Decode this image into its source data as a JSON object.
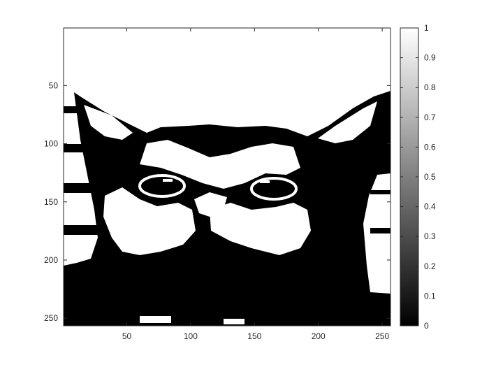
{
  "chart_data": {
    "type": "heatmap",
    "description_visible": "binary (thresholded) image of a cat's face displayed with imagesc and a grayscale colorbar",
    "image": {
      "width": 256,
      "height": 256,
      "colormap": "gray",
      "value_range": [
        0,
        1
      ],
      "values_present": [
        0,
        1
      ]
    },
    "x_axis": {
      "range": [
        0.5,
        256.5
      ],
      "ticks": [
        50,
        100,
        150,
        200,
        250
      ],
      "tick_labels": [
        "50",
        "100",
        "150",
        "200",
        "250"
      ]
    },
    "y_axis": {
      "direction": "reverse",
      "range": [
        0.5,
        256.5
      ],
      "ticks": [
        50,
        100,
        150,
        200,
        250
      ],
      "tick_labels": [
        "50",
        "100",
        "150",
        "200",
        "250"
      ]
    },
    "colorbar": {
      "range": [
        0,
        1
      ],
      "ticks": [
        0,
        0.1,
        0.2,
        0.3,
        0.4,
        0.5,
        0.6,
        0.7,
        0.8,
        0.9,
        1
      ],
      "tick_labels": [
        "0",
        "0.1",
        "0.2",
        "0.3",
        "0.4",
        "0.5",
        "0.6",
        "0.7",
        "0.8",
        "0.9",
        "1"
      ]
    },
    "grid": false,
    "title": "",
    "xlabel": "",
    "ylabel": ""
  }
}
